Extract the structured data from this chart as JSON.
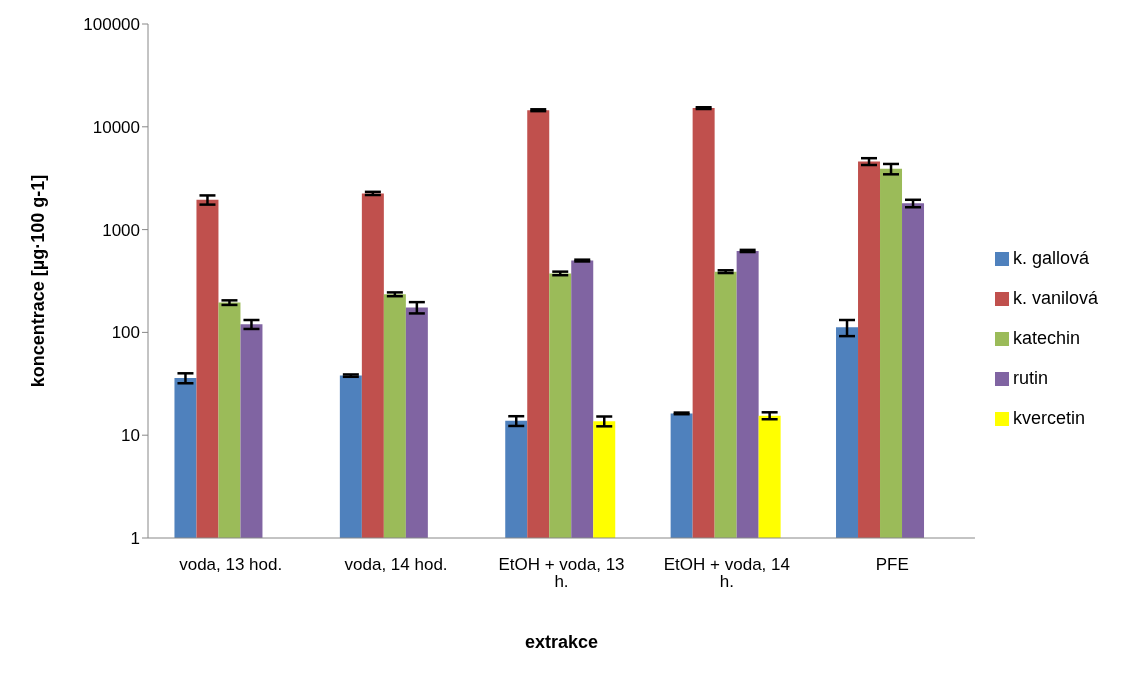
{
  "chart_data": {
    "type": "bar",
    "xlabel": "extrakce",
    "ylabel": "koncentrace [µg·100 g-1]",
    "categories": [
      "voda, 13 hod.",
      "voda, 14 hod.",
      "EtOH + voda, 13 h.",
      "EtOH + voda, 14 h.",
      "PFE"
    ],
    "series": [
      {
        "name": "k. gallová",
        "color": "#4f81bd",
        "values": [
          36,
          38,
          13.8,
          16.3,
          112
        ],
        "errors": [
          4,
          1,
          1.5,
          0.3,
          20
        ]
      },
      {
        "name": "k. vanilová",
        "color": "#c0504d",
        "values": [
          1950,
          2250,
          14500,
          15200,
          4600
        ],
        "errors": [
          200,
          80,
          300,
          300,
          350
        ]
      },
      {
        "name": "katechin",
        "color": "#9bbb59",
        "values": [
          195,
          235,
          375,
          390,
          3900
        ],
        "errors": [
          10,
          10,
          15,
          12,
          450
        ]
      },
      {
        "name": "rutin",
        "color": "#8064a2",
        "values": [
          120,
          175,
          500,
          620,
          1800
        ],
        "errors": [
          12,
          22,
          10,
          15,
          150
        ]
      },
      {
        "name": "kvercetin",
        "color": "#ffff00",
        "values": [
          null,
          null,
          13.7,
          15.5,
          null
        ],
        "errors": [
          null,
          null,
          1.5,
          1.2,
          null
        ]
      }
    ],
    "log": true,
    "ylim": [
      1,
      100000
    ],
    "yticks": [
      1,
      10,
      100,
      1000,
      10000,
      100000
    ],
    "grid": false,
    "legend": "right"
  }
}
